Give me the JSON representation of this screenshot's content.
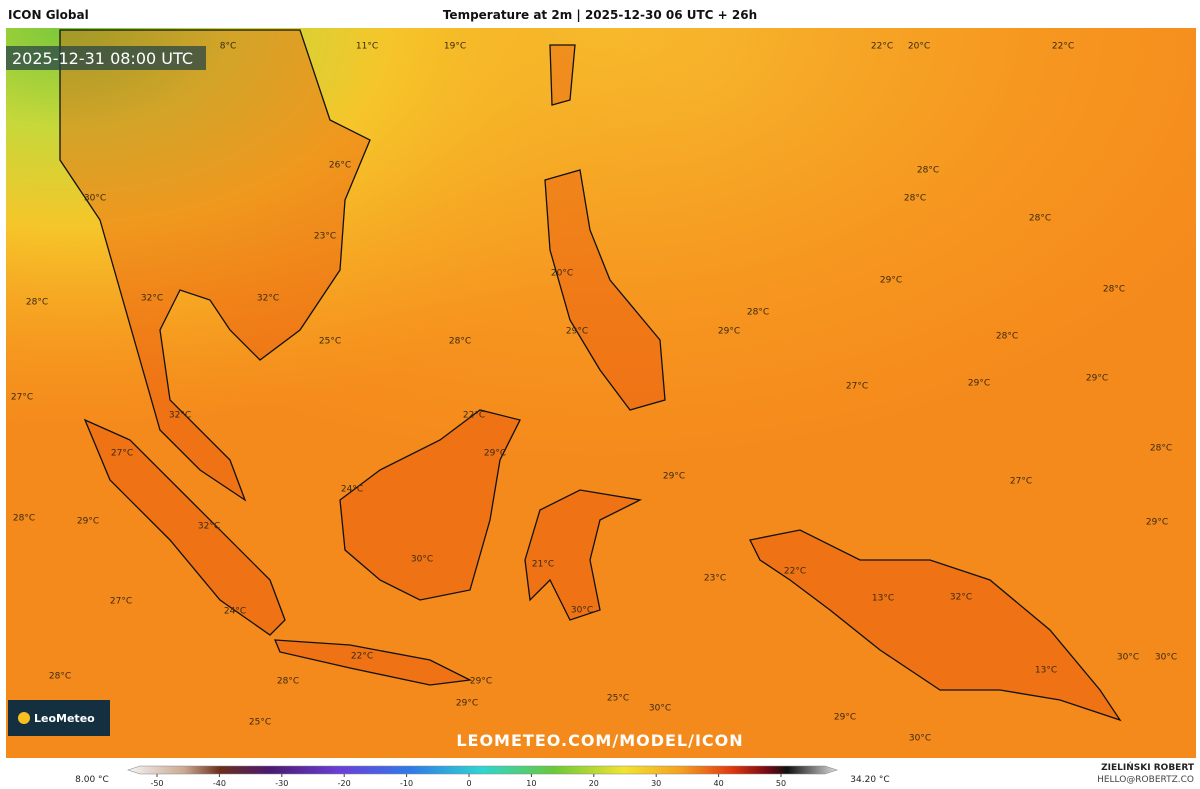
{
  "header": {
    "model": "ICON Global",
    "title": "Temperature at 2m | 2025-12-30 06 UTC + 26h"
  },
  "valid_time": "2025-12-31 08:00 UTC",
  "logo": "LeoMeteo",
  "watermark": "LEOMETEO.COM/MODEL/ICON",
  "map_labels": [
    "8°C",
    "11°C",
    "19°C",
    "22°C",
    "20°C",
    "22°C",
    "26°C",
    "30°C",
    "28°C",
    "28°C",
    "28°C",
    "23°C",
    "29°C",
    "28°C",
    "28°C",
    "32°C",
    "32°C",
    "20°C",
    "28°C",
    "29°C",
    "29°C",
    "25°C",
    "28°C",
    "28°C",
    "27°C",
    "29°C",
    "29°C",
    "27°C",
    "32°C",
    "22°C",
    "29°C",
    "27°C",
    "28°C",
    "29°C",
    "27°C",
    "24°C",
    "28°C",
    "29°C",
    "32°C",
    "29°C",
    "30°C",
    "21°C",
    "22°C",
    "23°C",
    "13°C",
    "32°C",
    "27°C",
    "24°C",
    "30°C",
    "22°C",
    "30°C",
    "30°C",
    "28°C",
    "28°C",
    "29°C",
    "13°C",
    "25°C",
    "29°C",
    "30°C",
    "25°C",
    "29°C",
    "30°C"
  ],
  "colorbar": {
    "min_label": "8.00 °C",
    "max_label": "34.20 °C",
    "ticks": [
      -50,
      -40,
      -30,
      -20,
      -10,
      0,
      10,
      20,
      30,
      40,
      50
    ]
  },
  "author": {
    "name": "ZIELIŃSKI ROBERT",
    "contact": "HELLO@ROBERTZ.CO"
  }
}
